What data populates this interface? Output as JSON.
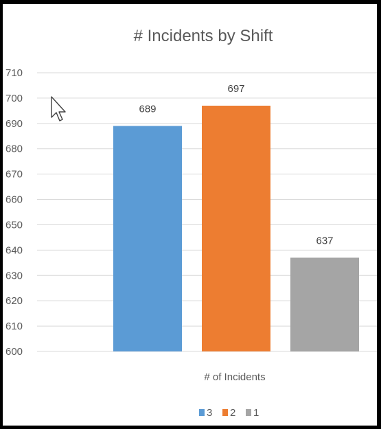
{
  "chart_data": {
    "type": "bar",
    "title": "# Incidents by Shift",
    "xlabel": "",
    "ylabel": "",
    "category": "# of Incidents",
    "ylim": [
      600,
      710
    ],
    "yticks": [
      600,
      610,
      620,
      630,
      640,
      650,
      660,
      670,
      680,
      690,
      700,
      710
    ],
    "grid": true,
    "legend_position": "bottom",
    "series": [
      {
        "name": "3",
        "values": [
          689
        ],
        "color": "#5b9bd5"
      },
      {
        "name": "2",
        "values": [
          697
        ],
        "color": "#ed7d31"
      },
      {
        "name": "1",
        "values": [
          637
        ],
        "color": "#a5a5a5"
      }
    ],
    "data_labels": [
      "689",
      "697",
      "637"
    ]
  },
  "cursor": {
    "icon": "mouse-pointer-icon"
  }
}
